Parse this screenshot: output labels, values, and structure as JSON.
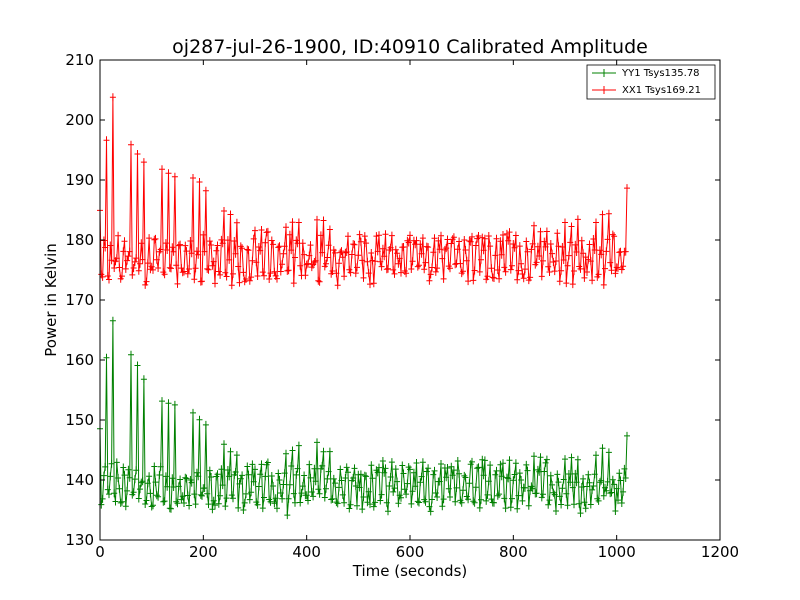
{
  "chart_data": {
    "type": "line",
    "title": "oj287-jul-26-1900, ID:40910 Calibrated Amplitude",
    "xlabel": "Time (seconds)",
    "ylabel": "Power in Kelvin",
    "xlim": [
      0,
      1200
    ],
    "ylim": [
      130,
      210
    ],
    "xticks": [
      0,
      200,
      400,
      600,
      800,
      1000,
      1200
    ],
    "yticks": [
      130,
      140,
      150,
      160,
      170,
      180,
      190,
      200,
      210
    ],
    "grid": false,
    "legend_position": "top-right",
    "marker": "+",
    "series": [
      {
        "name": "YY1 Tsys135.78",
        "color": "#008000",
        "baseline": 139.5,
        "envelope_x": [
          0,
          20,
          40,
          60,
          80,
          100,
          120,
          140,
          160,
          180,
          200,
          220,
          240,
          260,
          280,
          300,
          320,
          340,
          360,
          380,
          400,
          420,
          440,
          460,
          480,
          500,
          550,
          600,
          650,
          700,
          750,
          800,
          850,
          900,
          950,
          1000,
          1020
        ],
        "envelope_y": [
          149,
          168,
          165,
          161,
          158,
          156,
          154,
          154,
          153,
          152,
          151,
          148,
          146,
          145,
          144,
          143,
          143,
          144,
          145,
          146,
          146.5,
          146.5,
          145.5,
          144,
          142,
          142,
          143,
          143,
          143,
          143,
          143.5,
          144,
          144.5,
          144.5,
          145,
          146,
          148
        ]
      },
      {
        "name": "XX1 Tsys169.21",
        "color": "#ff0000",
        "baseline": 177.5,
        "envelope_x": [
          0,
          20,
          40,
          60,
          80,
          100,
          120,
          140,
          160,
          180,
          200,
          220,
          240,
          260,
          280,
          300,
          320,
          340,
          360,
          380,
          400,
          420,
          440,
          460,
          480,
          500,
          550,
          600,
          650,
          700,
          750,
          800,
          850,
          900,
          950,
          1000,
          1020
        ],
        "envelope_y": [
          185,
          205,
          202,
          197,
          194,
          193,
          192,
          192,
          192,
          191,
          190,
          188,
          186,
          184,
          183,
          182,
          182,
          182,
          183,
          184,
          184.5,
          184.5,
          183.5,
          182,
          181,
          180,
          181,
          181,
          181,
          181,
          181.5,
          182,
          182.5,
          183,
          184,
          186,
          189
        ]
      }
    ]
  }
}
